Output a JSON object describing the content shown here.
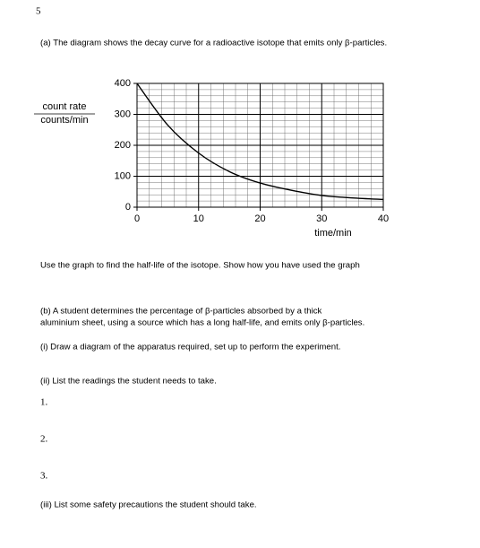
{
  "question_number": "5",
  "part_a": {
    "text": "(a) The diagram shows the decay curve for a radioactive isotope that emits only β-particles."
  },
  "chart_data": {
    "type": "line",
    "y_label": [
      "count rate",
      "counts/min"
    ],
    "x_label": "time/min",
    "x": [
      0,
      5,
      10,
      15,
      20,
      25,
      30,
      35,
      40
    ],
    "series": [
      {
        "name": "decay curve",
        "color": "#000000",
        "values": [
          400,
          265,
          175,
          115,
          78,
          55,
          38,
          30,
          25
        ]
      }
    ],
    "xlim": [
      0,
      40
    ],
    "ylim": [
      0,
      400
    ],
    "xticks": [
      0,
      10,
      20,
      30,
      40
    ],
    "yticks": [
      0,
      100,
      200,
      300,
      400
    ],
    "x_minor_grid": [
      0,
      2,
      4,
      6,
      8,
      10,
      12,
      14,
      16,
      18,
      20,
      22,
      24,
      26,
      28,
      30,
      32,
      34,
      36,
      38,
      40
    ],
    "y_minor_grid": [
      0,
      20,
      40,
      60,
      80,
      100,
      120,
      140,
      160,
      180,
      200,
      220,
      240,
      260,
      280,
      300,
      320,
      340,
      360,
      380,
      400
    ],
    "grid": true
  },
  "instruction": "Use the graph to find the half-life of the isotope. Show how you have used the graph",
  "part_b": {
    "lines": [
      "(b) A student determines the percentage of β-particles absorbed by a thick",
      "aluminium sheet, using a source which has a long half-life, and emits only β-particles."
    ],
    "i": "(i) Draw a diagram of the apparatus required, set up to perform the experiment.",
    "ii": "(ii) List the readings the student needs to take.",
    "numbers": [
      "1.",
      "2.",
      "3."
    ],
    "iii": "(iii) List some safety precautions the student should take."
  }
}
